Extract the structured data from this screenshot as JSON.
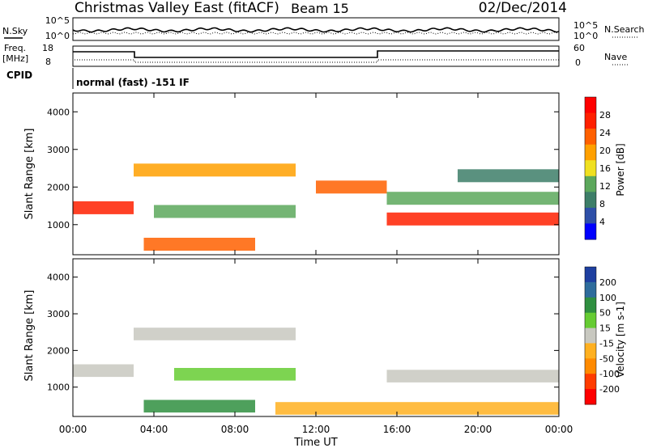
{
  "header": {
    "title": "Christmas Valley East (fitACF)",
    "beam": "Beam 15",
    "date": "02/Dec/2014"
  },
  "noise_panel": {
    "left_label": "N.Sky",
    "right_label": "N.Search",
    "left_ticks": [
      "10^5",
      "10^0"
    ],
    "right_ticks": [
      "10^5",
      "10^0"
    ]
  },
  "freq_panel": {
    "left_label_1": "Freq.",
    "left_label_2": "[MHz]",
    "right_label": "Nave",
    "left_ticks": [
      "18",
      "8"
    ],
    "right_ticks": [
      "60",
      "0"
    ]
  },
  "cpid": {
    "label": "CPID",
    "value": "normal (fast) -151 IF"
  },
  "colors": {
    "power_scale": [
      "#0000ff",
      "#2e4fa8",
      "#3d7e68",
      "#5ca85c",
      "#f0e020",
      "#ffa000",
      "#ff6000",
      "#ff2000",
      "#ff0000"
    ],
    "velocity_scale": [
      "#1e3fa0",
      "#2e6c9c",
      "#2f8f40",
      "#66cc33",
      "#c8c8c0",
      "#ffb020",
      "#ff8a00",
      "#ff3c00",
      "#ff0000"
    ]
  },
  "chart_data": [
    {
      "type": "heatmap",
      "name": "power",
      "ylabel": "Slant Range [km]",
      "xlabel": "",
      "ylim": [
        200,
        4500
      ],
      "xlim_hours": [
        0,
        24
      ],
      "x_ticks": [
        "00:00",
        "04:00",
        "08:00",
        "12:00",
        "16:00",
        "20:00",
        "00:00"
      ],
      "y_ticks": [
        "1000",
        "2000",
        "3000",
        "4000"
      ],
      "y_tick_values": [
        1000,
        2000,
        3000,
        4000
      ],
      "colorbar_label": "Power [dB]",
      "colorbar_ticks": [
        "4",
        "8",
        "12",
        "16",
        "20",
        "24",
        "28"
      ],
      "features": [
        {
          "hour_start": 0,
          "hour_end": 3.0,
          "range_center": 1450,
          "value": 26
        },
        {
          "hour_start": 3.0,
          "hour_end": 11.0,
          "range_center": 2450,
          "value": 20
        },
        {
          "hour_start": 4.0,
          "hour_end": 11.0,
          "range_center": 1350,
          "value": 12
        },
        {
          "hour_start": 3.5,
          "hour_end": 9.0,
          "range_center": 480,
          "value": 22
        },
        {
          "hour_start": 12.0,
          "hour_end": 15.5,
          "range_center": 2000,
          "value": 22
        },
        {
          "hour_start": 15.5,
          "hour_end": 24,
          "range_center": 1150,
          "value": 27
        },
        {
          "hour_start": 15.5,
          "hour_end": 24,
          "range_center": 1700,
          "value": 12
        },
        {
          "hour_start": 19.0,
          "hour_end": 24,
          "range_center": 2300,
          "value": 10
        }
      ]
    },
    {
      "type": "heatmap",
      "name": "velocity",
      "ylabel": "Slant Range [km]",
      "xlabel": "Time UT",
      "ylim": [
        200,
        4500
      ],
      "xlim_hours": [
        0,
        24
      ],
      "x_ticks": [
        "00:00",
        "04:00",
        "08:00",
        "12:00",
        "16:00",
        "20:00",
        "00:00"
      ],
      "y_ticks": [
        "1000",
        "2000",
        "3000",
        "4000"
      ],
      "y_tick_values": [
        1000,
        2000,
        3000,
        4000
      ],
      "colorbar_label": "Velocity [m s-1]",
      "colorbar_ticks": [
        "200",
        "100",
        "50",
        "15",
        "-15",
        "-50",
        "-100",
        "-200"
      ],
      "features": [
        {
          "hour_start": 0,
          "hour_end": 3.0,
          "range_center": 1450,
          "value": 0
        },
        {
          "hour_start": 3.0,
          "hour_end": 11.0,
          "range_center": 2450,
          "value": 0
        },
        {
          "hour_start": 5.0,
          "hour_end": 11.0,
          "range_center": 1350,
          "value": 60
        },
        {
          "hour_start": 3.5,
          "hour_end": 9.0,
          "range_center": 480,
          "value": 120
        },
        {
          "hour_start": 15.5,
          "hour_end": 24,
          "range_center": 1300,
          "value": 0
        },
        {
          "hour_start": 10.0,
          "hour_end": 24,
          "range_center": 420,
          "value": -60
        }
      ]
    }
  ]
}
